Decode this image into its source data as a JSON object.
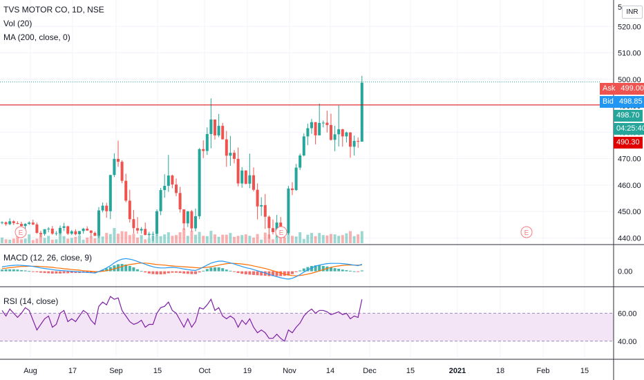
{
  "header": {
    "symbol_title": "TVS MOTOR CO, 1D, NSE",
    "volume_indicator": "Vol (20)",
    "ma_indicator": "MA (200, close, 0)",
    "currency": "INR"
  },
  "price_badges": {
    "ask_label": "Ask",
    "ask_value": "499.00",
    "bid_label": "Bid",
    "bid_value": "498.85",
    "last_price": "498.70",
    "countdown": "04:25:40",
    "level_price": "490.30"
  },
  "colors": {
    "up": "#26a69a",
    "down": "#ef5350",
    "ask": "#ef5350",
    "bid": "#2196f3",
    "level_line": "#e00000",
    "macd_line": "#2196f3",
    "signal_line": "#ff6d00",
    "rsi_line": "#7e1fa3",
    "rsi_band": "#f3e5f5"
  },
  "chart_data": [
    {
      "type": "candlestick",
      "pane": "price",
      "title": "TVS MOTOR CO, 1D, NSE",
      "ylim": [
        438,
        530
      ],
      "y_ticks": [
        "440.00",
        "450.00",
        "460.00",
        "470.00",
        "480.00",
        "490.00",
        "500.00",
        "510.00",
        "520.00"
      ],
      "y_tick_values": [
        440,
        450,
        460,
        470,
        480,
        490,
        500,
        510,
        520
      ],
      "y_top_label_partial": "5",
      "x_ticks": [
        "Aug",
        "17",
        "Sep",
        "15",
        "Oct",
        "19",
        "Nov",
        "14",
        "Dec",
        "15",
        "2021",
        "18",
        "Feb",
        "15"
      ],
      "horizontal_level": 490.3,
      "earnings_markers": [
        "E",
        "E",
        "E"
      ],
      "candles": [
        [
          445.9,
          446.3,
          445.2,
          445.9
        ],
        [
          445.9,
          446.2,
          444.6,
          445.2
        ],
        [
          445.2,
          447.4,
          444.8,
          446.3
        ],
        [
          446.3,
          446.7,
          444.9,
          445.6
        ],
        [
          445.6,
          446.3,
          445.2,
          445.3
        ],
        [
          445.3,
          446.1,
          444.4,
          444.5
        ],
        [
          444.5,
          445.6,
          443.5,
          445.3
        ],
        [
          445.3,
          446.3,
          444.9,
          445.8
        ],
        [
          445.8,
          446.9,
          444.8,
          445.1
        ],
        [
          445.1,
          445.8,
          441.6,
          441.9
        ],
        [
          441.9,
          442.7,
          440.3,
          441.5
        ],
        [
          441.5,
          443.3,
          440.8,
          443.3
        ],
        [
          443.3,
          444.1,
          442.1,
          443.5
        ],
        [
          443.5,
          444.5,
          441.2,
          441.6
        ],
        [
          441.6,
          442.6,
          440.9,
          441.8
        ],
        [
          441.8,
          444.7,
          441.3,
          443.8
        ],
        [
          443.8,
          445.7,
          442.6,
          444.4
        ],
        [
          444.4,
          444.6,
          441.1,
          441.6
        ],
        [
          441.6,
          443.0,
          441.1,
          442.5
        ],
        [
          442.5,
          443.3,
          441.0,
          441.4
        ],
        [
          441.4,
          442.6,
          441.0,
          442.6
        ],
        [
          442.6,
          443.8,
          441.6,
          443.5
        ],
        [
          443.5,
          444.4,
          442.7,
          442.8
        ],
        [
          442.8,
          442.9,
          440.3,
          441.9
        ],
        [
          441.9,
          442.4,
          440.7,
          440.8
        ],
        [
          440.8,
          451.7,
          440.0,
          450.4
        ],
        [
          450.4,
          453.4,
          449.7,
          452.2
        ],
        [
          452.2,
          453.3,
          447.6,
          450.1
        ],
        [
          450.1,
          463.9,
          447.1,
          463.8
        ],
        [
          463.8,
          472.0,
          463.0,
          469.9
        ],
        [
          469.9,
          476.8,
          466.9,
          468.8
        ],
        [
          468.8,
          469.4,
          460.7,
          461.6
        ],
        [
          461.6,
          464.3,
          453.5,
          454.1
        ],
        [
          454.1,
          458.2,
          445.8,
          447.1
        ],
        [
          447.1,
          450.6,
          441.7,
          443.7
        ],
        [
          443.7,
          447.9,
          441.6,
          442.8
        ],
        [
          442.8,
          444.1,
          441.6,
          443.4
        ],
        [
          443.4,
          445.8,
          441.0,
          441.1
        ],
        [
          441.1,
          442.3,
          439.8,
          441.5
        ],
        [
          441.5,
          442.4,
          438.8,
          441.5
        ],
        [
          441.5,
          450.8,
          440.8,
          450.1
        ],
        [
          450.1,
          458.9,
          448.6,
          458.1
        ],
        [
          458.1,
          464.1,
          455.2,
          459.7
        ],
        [
          459.7,
          471.4,
          457.4,
          463.6
        ],
        [
          463.6,
          463.9,
          458.8,
          460.2
        ],
        [
          460.2,
          462.5,
          455.8,
          457.0
        ],
        [
          457.0,
          459.3,
          449.6,
          450.8
        ],
        [
          450.8,
          450.8,
          443.1,
          445.5
        ],
        [
          445.5,
          450.1,
          444.1,
          450.1
        ],
        [
          450.1,
          450.6,
          442.4,
          443.6
        ],
        [
          443.6,
          451.1,
          442.5,
          448.2
        ],
        [
          448.2,
          474.0,
          447.1,
          473.6
        ],
        [
          473.6,
          476.9,
          470.2,
          472.9
        ],
        [
          472.9,
          481.8,
          471.4,
          479.3
        ],
        [
          479.3,
          492.8,
          473.9,
          484.8
        ],
        [
          484.8,
          484.8,
          477.2,
          478.8
        ],
        [
          478.8,
          486.9,
          478.1,
          482.4
        ],
        [
          482.4,
          483.5,
          477.2,
          477.3
        ],
        [
          477.3,
          480.5,
          466.9,
          471.1
        ],
        [
          471.1,
          478.6,
          467.3,
          472.2
        ],
        [
          472.2,
          473.2,
          468.2,
          469.9
        ],
        [
          469.9,
          474.2,
          459.5,
          460.6
        ],
        [
          460.6,
          466.8,
          459.0,
          465.5
        ],
        [
          465.5,
          465.6,
          460.2,
          460.5
        ],
        [
          460.5,
          471.9,
          458.8,
          463.7
        ],
        [
          463.7,
          466.7,
          457.6,
          458.2
        ],
        [
          458.2,
          460.6,
          447.0,
          451.9
        ],
        [
          451.9,
          455.4,
          448.3,
          452.4
        ],
        [
          452.4,
          456.6,
          443.4,
          448.0
        ],
        [
          448.0,
          448.5,
          439.7,
          443.7
        ],
        [
          443.7,
          447.0,
          441.3,
          442.2
        ],
        [
          442.2,
          448.7,
          440.2,
          445.8
        ],
        [
          445.8,
          447.9,
          441.4,
          443.1
        ],
        [
          443.1,
          444.1,
          440.1,
          441.8
        ],
        [
          441.8,
          459.7,
          441.2,
          458.7
        ],
        [
          458.7,
          461.1,
          456.2,
          458.1
        ],
        [
          458.1,
          468.0,
          457.8,
          466.6
        ],
        [
          466.6,
          471.9,
          465.7,
          471.2
        ],
        [
          471.2,
          479.6,
          470.8,
          478.4
        ],
        [
          478.4,
          483.2,
          475.1,
          481.5
        ],
        [
          481.5,
          485.0,
          479.4,
          483.8
        ],
        [
          483.8,
          483.8,
          475.4,
          478.8
        ],
        [
          478.8,
          490.8,
          478.8,
          483.5
        ],
        [
          483.5,
          484.4,
          481.8,
          483.6
        ],
        [
          483.6,
          488.1,
          479.9,
          482.7
        ],
        [
          482.7,
          487.0,
          476.8,
          477.1
        ],
        [
          477.1,
          482.4,
          472.8,
          479.2
        ],
        [
          479.2,
          490.1,
          474.6,
          481.1
        ],
        [
          481.1,
          481.3,
          474.5,
          478.4
        ],
        [
          478.4,
          480.2,
          476.1,
          479.9
        ],
        [
          479.9,
          480.0,
          470.3,
          474.5
        ],
        [
          474.5,
          478.7,
          471.2,
          476.7
        ],
        [
          476.7,
          478.0,
          474.1,
          476.4
        ],
        [
          476.4,
          501.3,
          476.4,
          498.7
        ]
      ],
      "volumes": [
        1.6,
        1.1,
        1.0,
        1.3,
        2.1,
        1.1,
        1.3,
        2.5,
        0.9,
        1.3,
        2.8,
        1.5,
        2.1,
        1.0,
        1.1,
        3.0,
        2.0,
        1.3,
        1.5,
        1.8,
        2.2,
        1.0,
        1.6,
        1.9,
        1.4,
        3.7,
        1.9,
        2.9,
        2.6,
        4.3,
        2.7,
        3.4,
        3.3,
        2.3,
        2.7,
        1.6,
        2.3,
        1.1,
        1.4,
        2.1,
        2.4,
        2.0,
        2.5,
        3.1,
        2.1,
        2.3,
        3.1,
        4.2,
        2.1,
        3.5,
        2.4,
        3.2,
        2.1,
        2.0,
        3.5,
        2.5,
        1.8,
        2.4,
        2.4,
        2.9,
        1.8,
        2.1,
        2.3,
        2.5,
        2.1,
        1.6,
        2.6,
        1.0,
        3.0,
        2.5,
        1.1,
        2.5,
        2.1,
        1.6,
        2.8,
        2.1,
        1.9,
        3.1,
        1.2,
        2.4,
        2.9,
        2.0,
        2.9,
        2.3,
        2.2,
        2.6,
        2.5,
        2.1,
        2.3,
        2.8,
        3.4,
        2.0,
        2.5,
        3.4
      ]
    },
    {
      "type": "line",
      "pane": "macd",
      "title": "MACD (12, 26, close, 9)",
      "ylim": [
        -5,
        9
      ],
      "y_ticks": [
        "0.00"
      ],
      "y_tick_values": [
        0
      ],
      "series": [
        {
          "name": "",
          "values": [
            1.6,
            1.8,
            2.0,
            2.1,
            2.2,
            2.1,
            2.0,
            1.9,
            1.7,
            1.5,
            1.2,
            1.0,
            0.8,
            0.6,
            0.4,
            0.3,
            0.2,
            0.1,
            0.0,
            -0.1,
            -0.2,
            -0.3,
            -0.4,
            -0.5,
            -0.6,
            -0.1,
            0.5,
            1.2,
            2.0,
            3.0,
            3.8,
            4.3,
            4.5,
            4.3,
            4.0,
            3.5,
            3.0,
            2.5,
            2.0,
            1.6,
            1.3,
            1.2,
            1.2,
            1.3,
            1.4,
            1.3,
            1.1,
            0.8,
            0.6,
            0.4,
            0.3,
            0.8,
            1.5,
            2.2,
            2.9,
            3.3,
            3.6,
            3.6,
            3.3,
            3.0,
            2.6,
            2.1,
            1.7,
            1.3,
            1.0,
            0.6,
            0.2,
            -0.2,
            -0.6,
            -1.1,
            -1.5,
            -1.9,
            -2.3,
            -2.6,
            -2.8,
            -2.5,
            -1.9,
            -1.2,
            -0.3,
            0.5,
            1.2,
            1.8,
            2.2,
            2.5,
            2.7,
            2.8,
            2.8,
            2.8,
            2.7,
            2.6,
            2.4,
            2.2,
            2.0,
            2.5
          ]
        },
        {
          "name": "",
          "values": [
            1.0,
            1.1,
            1.3,
            1.4,
            1.6,
            1.7,
            1.7,
            1.8,
            1.8,
            1.8,
            1.7,
            1.6,
            1.5,
            1.4,
            1.2,
            1.1,
            0.9,
            0.8,
            0.6,
            0.5,
            0.4,
            0.2,
            0.1,
            0.0,
            -0.1,
            -0.1,
            0.0,
            0.2,
            0.5,
            0.9,
            1.3,
            1.7,
            2.1,
            2.4,
            2.6,
            2.8,
            2.9,
            2.9,
            2.8,
            2.6,
            2.4,
            2.3,
            2.2,
            2.0,
            1.9,
            1.8,
            1.7,
            1.6,
            1.5,
            1.4,
            1.3,
            1.2,
            1.3,
            1.4,
            1.6,
            1.9,
            2.2,
            2.5,
            2.7,
            2.8,
            2.8,
            2.7,
            2.6,
            2.4,
            2.2,
            1.9,
            1.6,
            1.3,
            1.0,
            0.6,
            0.2,
            -0.2,
            -0.6,
            -1.0,
            -1.3,
            -1.5,
            -1.6,
            -1.5,
            -1.3,
            -1.0,
            -0.7,
            -0.3,
            0.1,
            0.6,
            1.0,
            1.4,
            1.7,
            1.9,
            2.1,
            2.2,
            2.2,
            2.2,
            2.2,
            2.2
          ]
        }
      ],
      "histogram": [
        0.6,
        0.7,
        0.7,
        0.7,
        0.6,
        0.4,
        0.3,
        0.1,
        -0.1,
        -0.3,
        -0.5,
        -0.6,
        -0.7,
        -0.8,
        -0.8,
        -0.8,
        -0.7,
        -0.7,
        -0.6,
        -0.6,
        -0.6,
        -0.5,
        -0.5,
        -0.5,
        -0.5,
        0.0,
        0.5,
        1.0,
        1.5,
        2.1,
        2.5,
        2.6,
        2.4,
        1.9,
        1.4,
        0.7,
        0.1,
        -0.4,
        -0.8,
        -1.0,
        -1.1,
        -1.1,
        -1.0,
        -0.7,
        -0.5,
        -0.5,
        -0.6,
        -0.8,
        -0.9,
        -1.0,
        -1.0,
        -0.4,
        0.2,
        0.8,
        1.3,
        1.4,
        1.4,
        1.1,
        0.6,
        0.2,
        -0.2,
        -0.6,
        -0.9,
        -1.1,
        -1.2,
        -1.3,
        -1.4,
        -1.5,
        -1.6,
        -1.7,
        -1.7,
        -1.7,
        -1.7,
        -1.6,
        -1.5,
        -1.0,
        -0.3,
        0.3,
        1.0,
        1.5,
        1.9,
        2.1,
        2.1,
        1.9,
        1.7,
        1.4,
        1.1,
        0.9,
        0.6,
        0.4,
        0.2,
        0.0,
        -0.2,
        0.3
      ]
    },
    {
      "type": "line",
      "pane": "rsi",
      "title": "RSI (14, close)",
      "ylim": [
        28,
        78
      ],
      "y_ticks": [
        "60.00",
        "40.00"
      ],
      "y_tick_values": [
        60,
        40
      ],
      "band": [
        40,
        60
      ],
      "series": [
        {
          "name": "",
          "values": [
            62,
            58,
            63,
            60,
            57,
            60,
            64,
            62,
            55,
            48,
            52,
            56,
            58,
            50,
            52,
            60,
            62,
            54,
            56,
            54,
            58,
            62,
            60,
            55,
            52,
            65,
            68,
            66,
            72,
            70,
            71,
            62,
            58,
            54,
            52,
            53,
            55,
            50,
            52,
            52,
            60,
            64,
            65,
            68,
            62,
            60,
            55,
            50,
            56,
            50,
            54,
            64,
            63,
            66,
            70,
            62,
            64,
            58,
            56,
            58,
            56,
            50,
            55,
            52,
            56,
            50,
            46,
            48,
            46,
            42,
            42,
            45,
            42,
            40,
            48,
            46,
            50,
            53,
            58,
            61,
            63,
            60,
            62,
            62,
            61,
            59,
            60,
            61,
            59,
            60,
            56,
            58,
            57,
            70
          ]
        }
      ]
    }
  ]
}
